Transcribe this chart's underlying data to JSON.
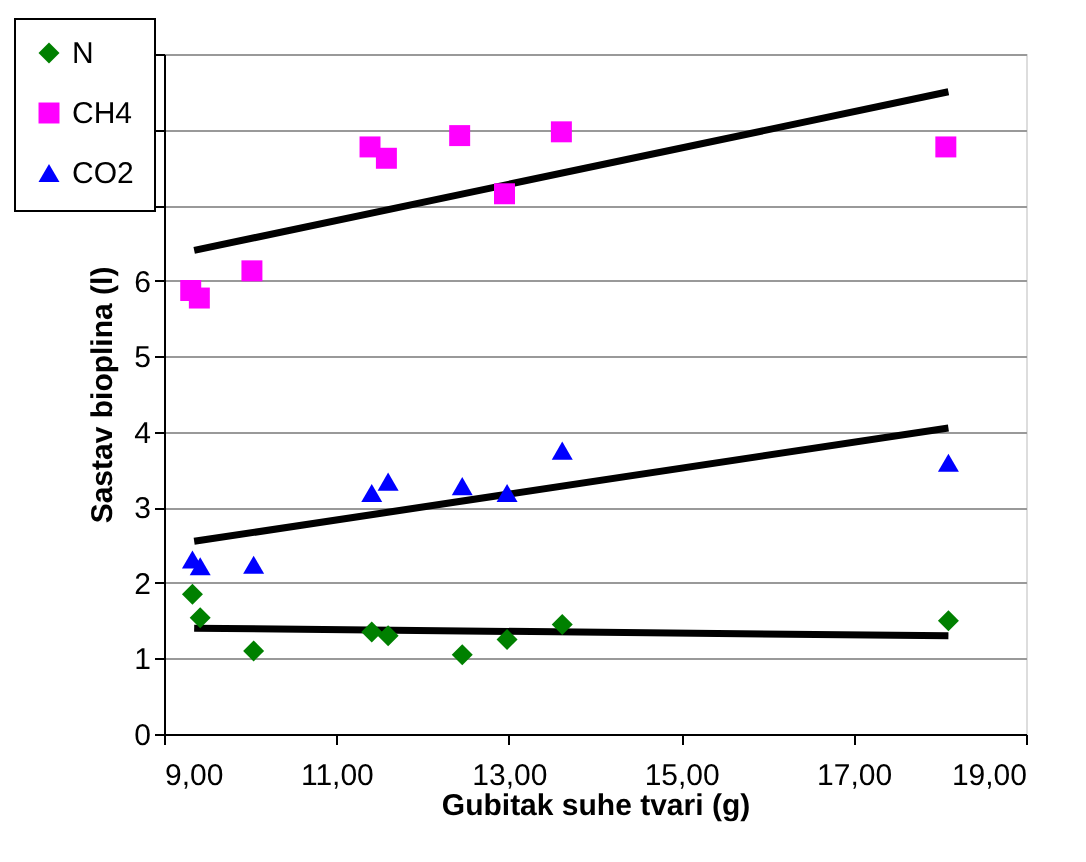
{
  "chart_data": {
    "type": "scatter",
    "xlabel": "Gubitak suhe tvari (g)",
    "ylabel": "Sastav bioplina (l)",
    "xlim": [
      9,
      19
    ],
    "ylim": [
      0,
      9
    ],
    "xticks": [
      {
        "value": 9,
        "label": "9,00"
      },
      {
        "value": 11,
        "label": "11,00"
      },
      {
        "value": 13,
        "label": "13,00"
      },
      {
        "value": 15,
        "label": "15,00"
      },
      {
        "value": 17,
        "label": "17,00"
      },
      {
        "value": 19,
        "label": "19,00"
      }
    ],
    "yticks": [
      0,
      1,
      2,
      3,
      4,
      5,
      6,
      {
        "value": 7,
        "label": null
      },
      {
        "value": 8,
        "label": null
      },
      {
        "value": 9,
        "label": null
      }
    ],
    "grid": "y",
    "legend": "top left",
    "series": [
      {
        "name": "N",
        "color": "#008000",
        "marker": "diamond",
        "x": [
          9.33,
          9.42,
          10.04,
          11.41,
          11.6,
          12.46,
          12.98,
          13.62,
          18.1
        ],
        "values": [
          1.85,
          1.54,
          1.1,
          1.35,
          1.3,
          1.05,
          1.25,
          1.45,
          1.5
        ]
      },
      {
        "name": "CH4",
        "color": "#ff00ff",
        "marker": "square",
        "x": [
          9.31,
          9.41,
          10.02,
          11.39,
          11.58,
          12.43,
          12.95,
          13.61,
          18.07
        ],
        "values": [
          5.87,
          5.77,
          6.13,
          7.77,
          7.62,
          7.92,
          7.15,
          7.97,
          7.77
        ]
      },
      {
        "name": "CO2",
        "color": "#0000ff",
        "marker": "triangle",
        "x": [
          9.33,
          9.42,
          10.04,
          11.41,
          11.6,
          12.46,
          12.98,
          13.62,
          18.1
        ],
        "values": [
          2.31,
          2.22,
          2.24,
          3.19,
          3.34,
          3.28,
          3.19,
          3.75,
          3.59
        ]
      },
      {
        "type": "line",
        "color": "#000000",
        "x": [
          9.35,
          18.1
        ],
        "values": [
          1.4,
          1.3
        ]
      },
      {
        "type": "line",
        "color": "#000000",
        "x": [
          9.35,
          18.1
        ],
        "values": [
          6.4,
          8.5
        ]
      },
      {
        "type": "line",
        "color": "#000000",
        "x": [
          9.35,
          18.1
        ],
        "values": [
          2.55,
          4.05
        ]
      }
    ]
  }
}
